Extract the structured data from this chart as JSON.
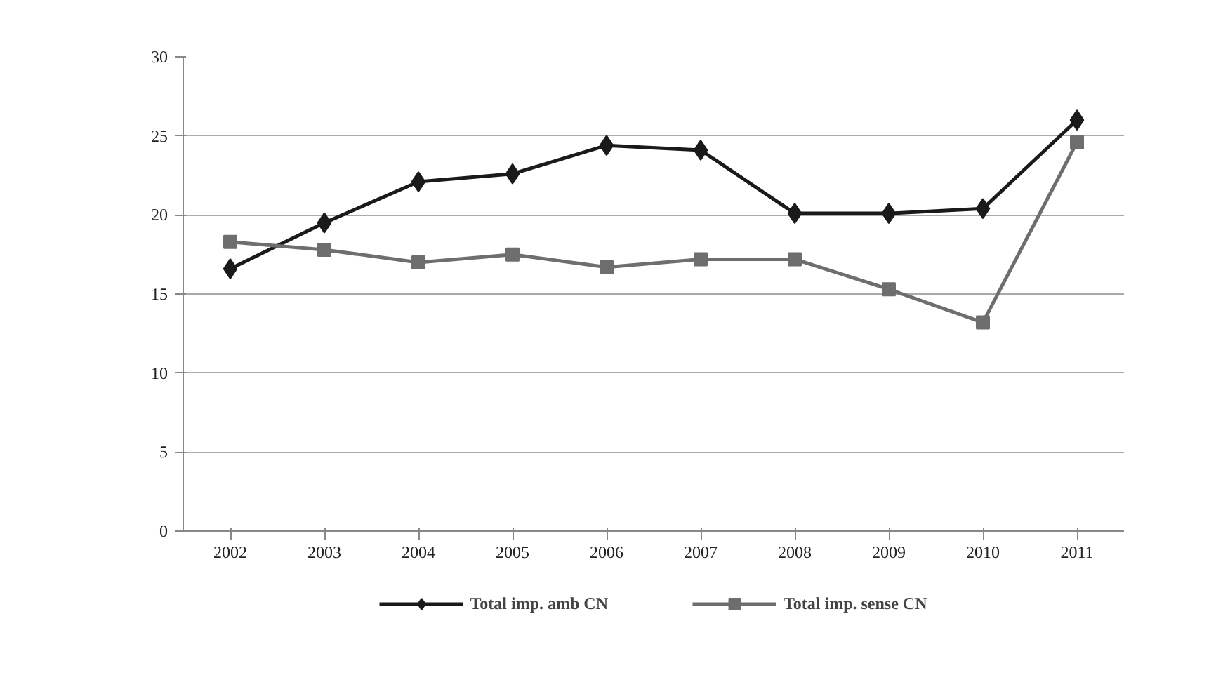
{
  "chart_data": {
    "type": "line",
    "categories": [
      "2002",
      "2003",
      "2004",
      "2005",
      "2006",
      "2007",
      "2008",
      "2009",
      "2010",
      "2011"
    ],
    "series": [
      {
        "name": "Total imp. amb CN",
        "color": "#1a1a1a",
        "marker": "diamond",
        "values": [
          16.6,
          19.5,
          22.1,
          22.6,
          24.4,
          24.1,
          20.1,
          20.1,
          20.4,
          26.0
        ]
      },
      {
        "name": "Total imp. sense CN",
        "color": "#6e6e6e",
        "marker": "square",
        "values": [
          18.3,
          17.8,
          17.0,
          17.5,
          16.7,
          17.2,
          17.2,
          15.3,
          13.2,
          24.6
        ]
      }
    ],
    "ylim": [
      0,
      30
    ],
    "yticks": [
      0,
      5,
      10,
      15,
      20,
      25,
      30
    ],
    "grid": "y",
    "legend": "bottom",
    "line_style": "solid"
  }
}
